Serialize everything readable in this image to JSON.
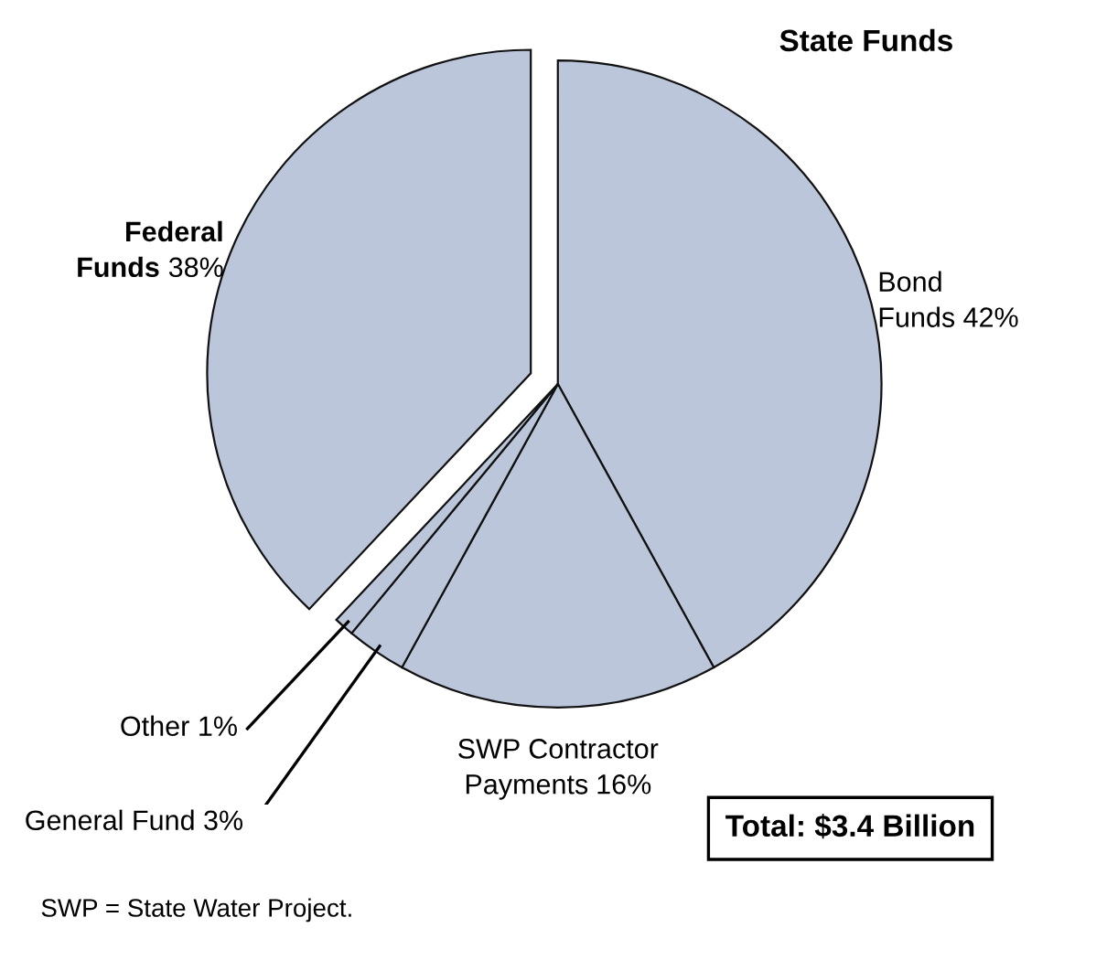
{
  "chart_data": {
    "type": "pie",
    "title": "State Funds",
    "categories": [
      "Bond\nFunds",
      "SWP Contractor\nPayments",
      "General Fund",
      "Other",
      "Federal\nFunds"
    ],
    "values": [
      42,
      16,
      3,
      1,
      38
    ],
    "value_labels": [
      "42%",
      "16%",
      "3%",
      "1%",
      "38%"
    ],
    "colors": [
      "#bcc6da",
      "#bcc6da",
      "#bcc6da",
      "#bcc6da",
      "#bcc6da"
    ],
    "annotations": [
      "Total: $3.4 Billion",
      "SWP = State Water Project."
    ]
  }
}
